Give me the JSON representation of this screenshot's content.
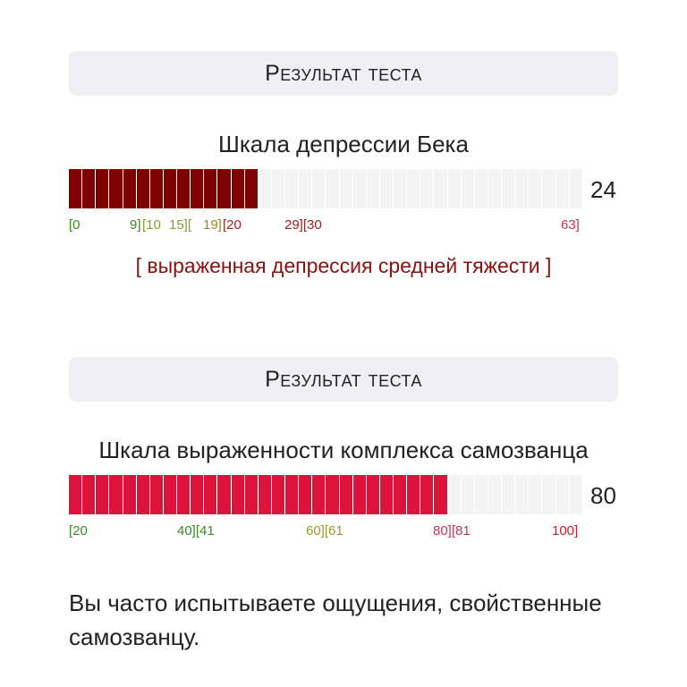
{
  "test1": {
    "header": "Результат теста",
    "title": "Шкала депрессии Бека",
    "score": "24",
    "score_value": 24,
    "segments_total": 38,
    "segments_filled": 14,
    "fill_color": "#7f0000",
    "empty_color": "#f4f4f4",
    "ticks": [
      {
        "text": "[0",
        "color": "#3a8a1e"
      },
      {
        "text": "9]",
        "color": "#3a8a1e"
      },
      {
        "text": "[10",
        "color": "#8a9a2a"
      },
      {
        "text": "15][",
        "color": "#8a9a2a"
      },
      {
        "text": "19]",
        "color": "#9a8a1e"
      },
      {
        "text": "[20",
        "color": "#9b2020"
      },
      {
        "text": "29][30",
        "color": "#9b2020"
      },
      {
        "text": "63]",
        "color": "#c8325a"
      }
    ],
    "verdict": "[ выраженная депрессия средней тяжести ]"
  },
  "test2": {
    "header": "Результат теста",
    "title": "Шкала выраженности комплекса самозванца",
    "score": "80",
    "score_value": 80,
    "segments_total": 38,
    "segments_filled": 28,
    "fill_color": "#dc143c",
    "empty_color": "#f4f4f4",
    "ticks": [
      {
        "text": "[20",
        "color": "#3a8a1e"
      },
      {
        "text": "40][41",
        "color": "#3a8a1e"
      },
      {
        "text": "60][61",
        "color": "#9a9a2a"
      },
      {
        "text": "80][81",
        "color": "#c8325a"
      },
      {
        "text": "100]",
        "color": "#c8202a"
      }
    ],
    "description": "Вы часто испытываете ощущения, свойственные самозванцу."
  }
}
